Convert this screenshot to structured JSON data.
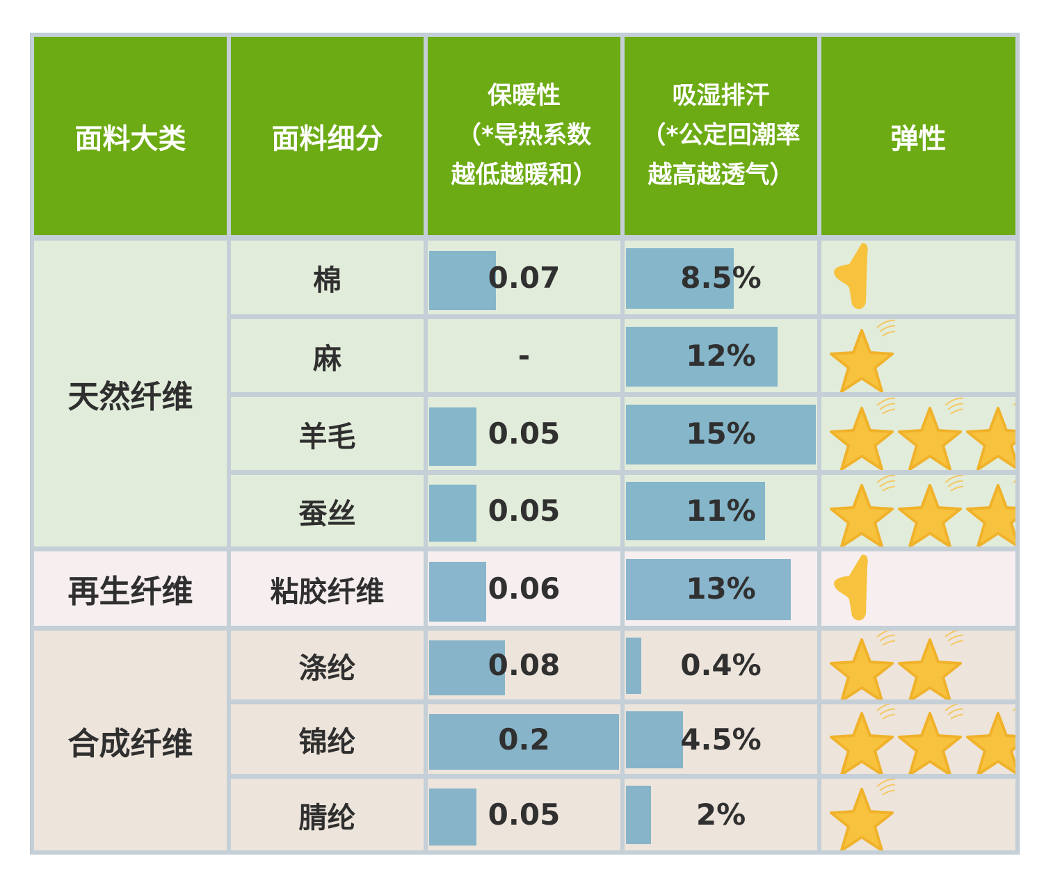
{
  "headers": {
    "category": "面料大类",
    "subcategory": "面料细分",
    "warmth_line1": "保暖性",
    "warmth_line2": "（*导热系数",
    "warmth_line3": "越低越暖和）",
    "moisture_line1": "吸湿排汗",
    "moisture_line2": "（*公定回潮率",
    "moisture_line3": "越高越透气）",
    "elasticity": "弹性"
  },
  "groups": {
    "natural": "天然纤维",
    "regenerated": "再生纤维",
    "synthetic": "合成纤维"
  },
  "rows": [
    {
      "name": "棉",
      "warmth": "0.07",
      "warmth_value": 0.07,
      "moisture": "8.5%",
      "moisture_value": 8.5,
      "elasticity_stars": 0.5
    },
    {
      "name": "麻",
      "warmth": "-",
      "warmth_value": null,
      "moisture": "12%",
      "moisture_value": 12,
      "elasticity_stars": 1
    },
    {
      "name": "羊毛",
      "warmth": "0.05",
      "warmth_value": 0.05,
      "moisture": "15%",
      "moisture_value": 15,
      "elasticity_stars": 3
    },
    {
      "name": "蚕丝",
      "warmth": "0.05",
      "warmth_value": 0.05,
      "moisture": "11%",
      "moisture_value": 11,
      "elasticity_stars": 3
    },
    {
      "name": "粘胶纤维",
      "warmth": "0.06",
      "warmth_value": 0.06,
      "moisture": "13%",
      "moisture_value": 13,
      "elasticity_stars": 0.5
    },
    {
      "name": "涤纶",
      "warmth": "0.08",
      "warmth_value": 0.08,
      "moisture": "0.4%",
      "moisture_value": 0.4,
      "elasticity_stars": 2
    },
    {
      "name": "锦纶",
      "warmth": "0.2",
      "warmth_value": 0.2,
      "moisture": "4.5%",
      "moisture_value": 4.5,
      "elasticity_stars": 3
    },
    {
      "name": "腈纶",
      "warmth": "0.05",
      "warmth_value": 0.05,
      "moisture": "2%",
      "moisture_value": 2,
      "elasticity_stars": 1
    }
  ],
  "colors": {
    "header_green": "#6cab14",
    "natural_bg": "#e2ecda",
    "regenerated_bg": "#f6eeef",
    "synthetic_bg": "#ede4db",
    "bar_blue": "#70a9c5",
    "star_yellow": "#f7c23e"
  },
  "icons": {
    "elasticity": "star-icon",
    "elasticity_half": "half-star-icon"
  }
}
